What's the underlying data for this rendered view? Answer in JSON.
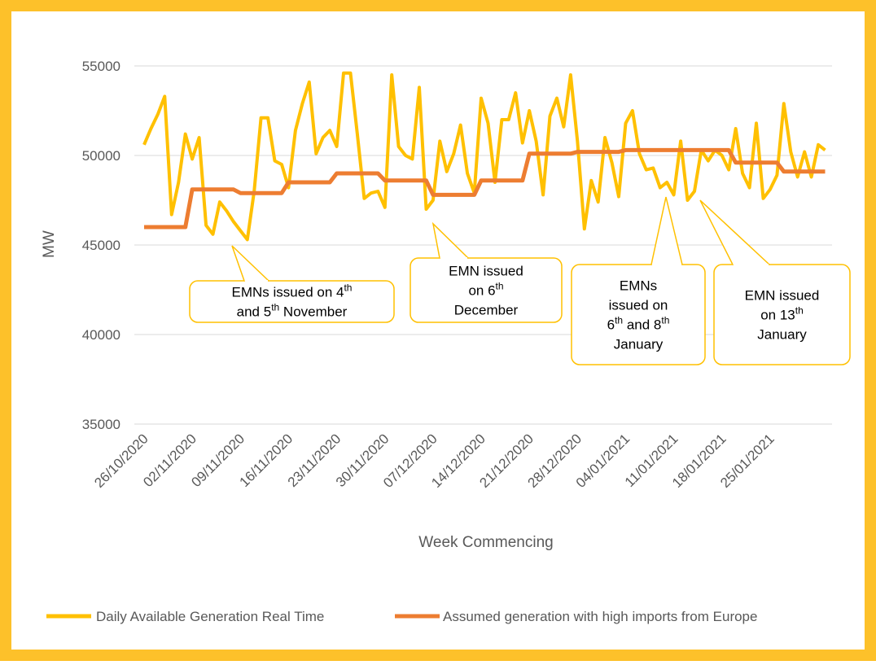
{
  "chart_data": {
    "type": "line",
    "x_label": "Week Commencing",
    "y_label": "MW",
    "categories": [
      "26/10/2020",
      null,
      null,
      null,
      null,
      null,
      null,
      "02/11/2020",
      null,
      null,
      null,
      null,
      null,
      null,
      "09/11/2020",
      null,
      null,
      null,
      null,
      null,
      null,
      "16/11/2020",
      null,
      null,
      null,
      null,
      null,
      null,
      "23/11/2020",
      null,
      null,
      null,
      null,
      null,
      null,
      "30/11/2020",
      null,
      null,
      null,
      null,
      null,
      null,
      "07/12/2020",
      null,
      null,
      null,
      null,
      null,
      null,
      "14/12/2020",
      null,
      null,
      null,
      null,
      null,
      null,
      "21/12/2020",
      null,
      null,
      null,
      null,
      null,
      null,
      "28/12/2020",
      null,
      null,
      null,
      null,
      null,
      null,
      "04/01/2021",
      null,
      null,
      null,
      null,
      null,
      null,
      "11/01/2021",
      null,
      null,
      null,
      null,
      null,
      null,
      "18/01/2021",
      null,
      null,
      null,
      null,
      null,
      null,
      "25/01/2021",
      null,
      null,
      null,
      null,
      null,
      null,
      null,
      null
    ],
    "series": [
      {
        "name": "Daily Available Generation Real Time",
        "color": "#FFC000",
        "values": [
          50600,
          51500,
          52300,
          53300,
          46700,
          48500,
          51200,
          49800,
          51000,
          46100,
          45600,
          47400,
          46900,
          46300,
          45800,
          45300,
          48000,
          52100,
          52100,
          49700,
          49500,
          48200,
          51400,
          52900,
          54100,
          50100,
          51000,
          51400,
          50500,
          54600,
          54600,
          51200,
          47600,
          47900,
          48000,
          47100,
          54500,
          50500,
          50000,
          49800,
          53800,
          47000,
          47500,
          50800,
          49100,
          50100,
          51700,
          49000,
          47900,
          53200,
          51800,
          48500,
          52000,
          52000,
          53500,
          50700,
          52500,
          50800,
          47800,
          52200,
          53200,
          51600,
          54500,
          50800,
          45900,
          48600,
          47400,
          51000,
          49600,
          47700,
          51800,
          52500,
          50100,
          49200,
          49300,
          48200,
          48500,
          47800,
          50800,
          47500,
          48000,
          50300,
          49700,
          50300,
          50000,
          49200,
          51500,
          49000,
          48200,
          51800,
          47600,
          48100,
          48900,
          52900,
          50200,
          48800,
          50200,
          48800,
          50600,
          50300
        ]
      },
      {
        "name": "Assumed generation with high imports from Europe",
        "color": "#ED7D31",
        "values": [
          46000,
          46000,
          46000,
          46000,
          46000,
          46000,
          46000,
          48100,
          48100,
          48100,
          48100,
          48100,
          48100,
          48100,
          47900,
          47900,
          47900,
          47900,
          47900,
          47900,
          47900,
          48500,
          48500,
          48500,
          48500,
          48500,
          48500,
          48500,
          49000,
          49000,
          49000,
          49000,
          49000,
          49000,
          49000,
          48600,
          48600,
          48600,
          48600,
          48600,
          48600,
          48600,
          47800,
          47800,
          47800,
          47800,
          47800,
          47800,
          47800,
          48600,
          48600,
          48600,
          48600,
          48600,
          48600,
          48600,
          50100,
          50100,
          50100,
          50100,
          50100,
          50100,
          50100,
          50200,
          50200,
          50200,
          50200,
          50200,
          50200,
          50200,
          50300,
          50300,
          50300,
          50300,
          50300,
          50300,
          50300,
          50300,
          50300,
          50300,
          50300,
          50300,
          50300,
          50300,
          50300,
          50300,
          49600,
          49600,
          49600,
          49600,
          49600,
          49600,
          49600,
          49100,
          49100,
          49100,
          49100,
          49100,
          49100,
          49100
        ]
      }
    ],
    "ylim": [
      35000,
      55000
    ],
    "yticks": [
      35000,
      40000,
      45000,
      50000,
      55000
    ],
    "grid": true,
    "legend": "bottom",
    "annotations": [
      {
        "lines": [
          [
            "EMNs issued on 4",
            "th"
          ],
          [
            "and 5",
            "th",
            " November"
          ]
        ]
      },
      {
        "lines": [
          [
            "EMN issued"
          ],
          [
            "on 6",
            "th"
          ],
          [
            "December"
          ]
        ]
      },
      {
        "lines": [
          [
            "EMNs"
          ],
          [
            "issued on"
          ],
          [
            "6",
            "th",
            " and 8",
            "th"
          ],
          [
            "January"
          ]
        ]
      },
      {
        "lines": [
          [
            "EMN issued"
          ],
          [
            "on 13",
            "th"
          ],
          [
            "January"
          ]
        ]
      }
    ]
  }
}
